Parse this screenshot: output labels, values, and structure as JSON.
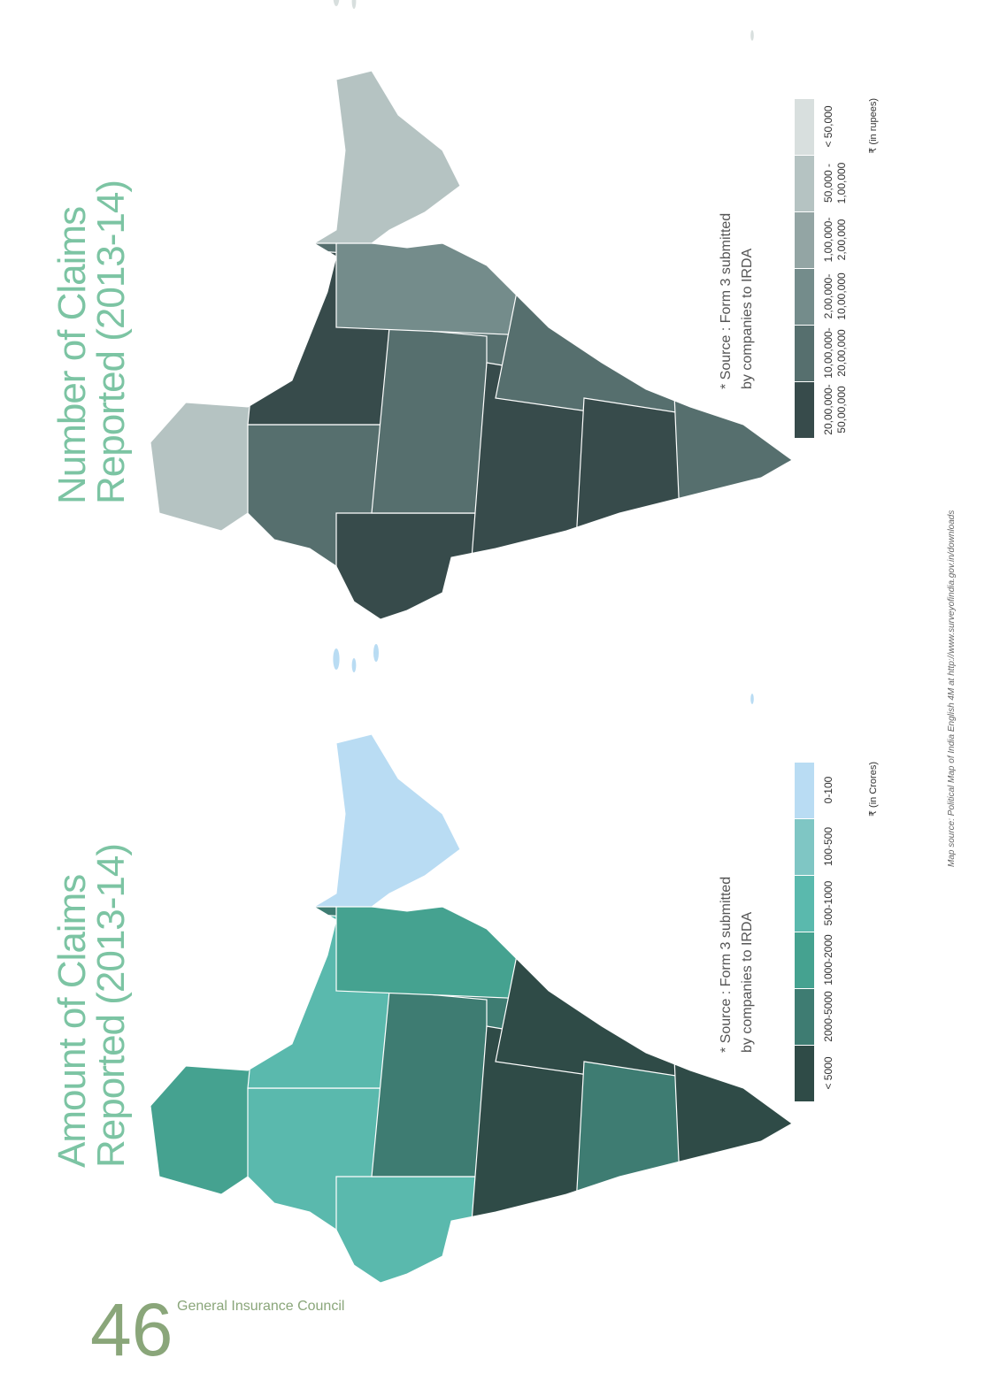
{
  "page_number": "46",
  "footer": "General Insurance Council",
  "credit": "Map source: Political Map of India English 4M at http://www.surveyofindia.gov.in/downloads",
  "maps": [
    {
      "title": [
        "Number of Claims",
        "Reported (2013-14)"
      ],
      "source": [
        "* Source : Form 3 submitted",
        "by companies to IRDA"
      ],
      "legend": [
        {
          "label": [
            "20,00,000-",
            "50,00,000"
          ],
          "color": "#374b4b"
        },
        {
          "label": [
            "10,00,000-",
            "20,00,000"
          ],
          "color": "#566f6e"
        },
        {
          "label": [
            "2,00,000-",
            "10,00,000"
          ],
          "color": "#748c8b"
        },
        {
          "label": [
            "1,00,000-",
            "2,00,000"
          ],
          "color": "#93a5a4"
        },
        {
          "label": [
            "50,000 -",
            "1,00,000"
          ],
          "color": "#b5c3c2"
        },
        {
          "label": [
            "< 50,000"
          ],
          "color": "#d8dfde"
        }
      ],
      "unit": "₹ (in rupees)"
    },
    {
      "title": [
        "Amount of Claims",
        "Reported (2013-14)"
      ],
      "source": [
        "* Source : Form 3 submitted",
        "by companies to IRDA"
      ],
      "legend": [
        {
          "label": [
            "< 5000"
          ],
          "color": "#2f4b47"
        },
        {
          "label": [
            "2000-5000"
          ],
          "color": "#3e7c72"
        },
        {
          "label": [
            "1000-2000"
          ],
          "color": "#45a290"
        },
        {
          "label": [
            "500-1000"
          ],
          "color": "#5ab9ad"
        },
        {
          "label": [
            "100-500"
          ],
          "color": "#7fc6c4"
        },
        {
          "label": [
            "0-100"
          ],
          "color": "#b9dcf3"
        }
      ],
      "unit": "₹ (in Crores)"
    }
  ]
}
